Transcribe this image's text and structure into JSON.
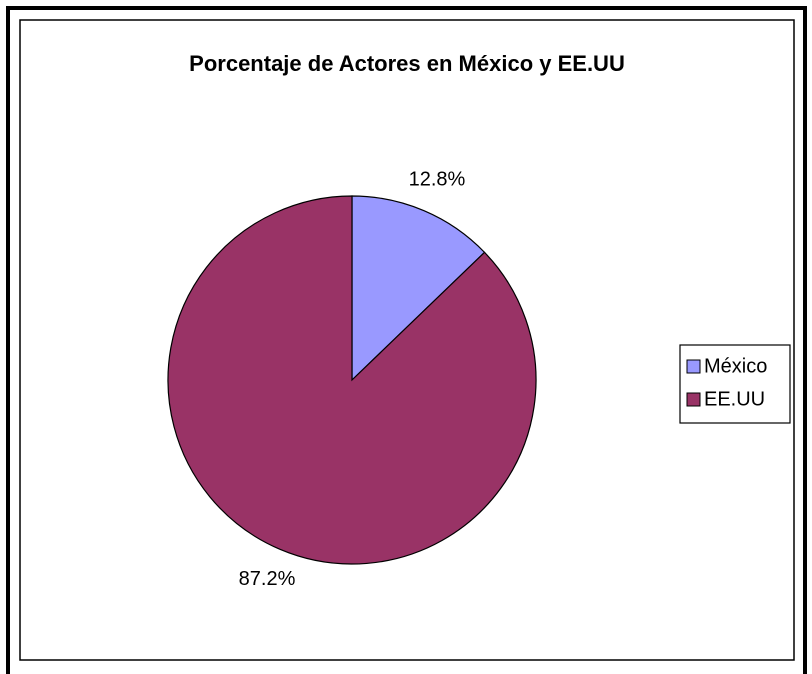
{
  "chart_data": {
    "type": "pie",
    "title": "Porcentaje de Actores en México y EE.UU",
    "categories": [
      "México",
      "EE.UU"
    ],
    "values": [
      12.8,
      87.2
    ],
    "value_labels": [
      "12.8%",
      "87.2%"
    ],
    "colors": [
      "#9999ff",
      "#993366"
    ],
    "legend": "right"
  }
}
